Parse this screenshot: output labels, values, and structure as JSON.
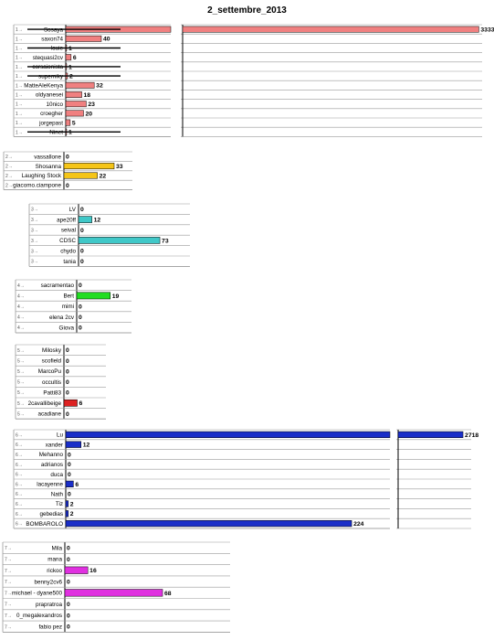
{
  "title": "2_settembre_2013",
  "chart_data": [
    {
      "type": "bar",
      "orientation": "horizontal",
      "color": "#F08080",
      "rank_mark": "1",
      "axis_break": true,
      "categories": [
        "Sosaya",
        "saxon74",
        "louie",
        "stequasi2cv",
        "corsaionista",
        "superniky",
        "MatteAleKenya",
        "oldyanesei",
        "10nico",
        "croegher",
        "jorgepast",
        "Ninet"
      ],
      "values": [
        3333,
        40,
        1,
        6,
        1,
        2,
        32,
        18,
        23,
        20,
        5,
        1
      ],
      "value_labels": [
        "3333",
        "40",
        "1",
        "6",
        "1",
        "2",
        "32",
        "18",
        "23",
        "20",
        "5",
        "1"
      ],
      "struck": [
        0,
        2,
        4,
        5,
        11
      ]
    },
    {
      "type": "bar",
      "orientation": "horizontal",
      "color": "#F5C518",
      "rank_mark": "2",
      "categories": [
        "vassallone",
        "Shosanna",
        "Laughing Stock",
        "giacomo.ciampone"
      ],
      "values": [
        0,
        33,
        22,
        0
      ],
      "value_labels": [
        "0",
        "33",
        "22",
        "0"
      ]
    },
    {
      "type": "bar",
      "orientation": "horizontal",
      "color": "#40C8C8",
      "rank_mark": "3",
      "categories": [
        "LV",
        "ape20ff",
        "seival",
        "CDSC",
        "chydo",
        "tania"
      ],
      "values": [
        0,
        12,
        0,
        73,
        0,
        0
      ],
      "value_labels": [
        "0",
        "12",
        "0",
        "73",
        "0",
        "0"
      ]
    },
    {
      "type": "bar",
      "orientation": "horizontal",
      "color": "#22DD22",
      "rank_mark": "4",
      "categories": [
        "sacramentao",
        "Bert",
        "mimi",
        "elena 2cv",
        "Giova"
      ],
      "values": [
        0,
        19,
        0,
        0,
        0
      ],
      "value_labels": [
        "0",
        "19",
        "0",
        "0",
        "0"
      ]
    },
    {
      "type": "bar",
      "orientation": "horizontal",
      "color": "#DD2222",
      "rank_mark": "5",
      "categories": [
        "Milosky",
        "scofield",
        "MarcoPu",
        "occultis",
        "Patti83",
        "2cavallibeige",
        "acadiane"
      ],
      "values": [
        0,
        0,
        0,
        0,
        0,
        6,
        0
      ],
      "value_labels": [
        "0",
        "0",
        "0",
        "0",
        "0",
        "6",
        "0"
      ]
    },
    {
      "type": "bar",
      "orientation": "horizontal",
      "color": "#1A2EC8",
      "rank_mark": "6",
      "axis_break": true,
      "categories": [
        "Lu",
        "xander",
        "Mehanno",
        "adrianos",
        "duca",
        "lacayenne",
        "Nath",
        "Tiz",
        "gebedias",
        "BOMBAROLO"
      ],
      "values": [
        2718,
        12,
        0,
        0,
        0,
        6,
        0,
        2,
        2,
        224
      ],
      "value_labels": [
        "2718",
        "12",
        "0",
        "0",
        "0",
        "6",
        "0",
        "2",
        "2",
        "224"
      ]
    },
    {
      "type": "bar",
      "orientation": "horizontal",
      "color": "#E030E0",
      "rank_mark": "7",
      "categories": [
        "Mila",
        "mana",
        "rickoo",
        "benny2cv6",
        "michael - dyane500",
        "prapratroa",
        "0_megalexandros",
        "fabio pez"
      ],
      "values": [
        0,
        0,
        16,
        0,
        68,
        0,
        0,
        0
      ],
      "value_labels": [
        "0",
        "0",
        "16",
        "0",
        "68",
        "0",
        "0",
        "0"
      ]
    }
  ]
}
